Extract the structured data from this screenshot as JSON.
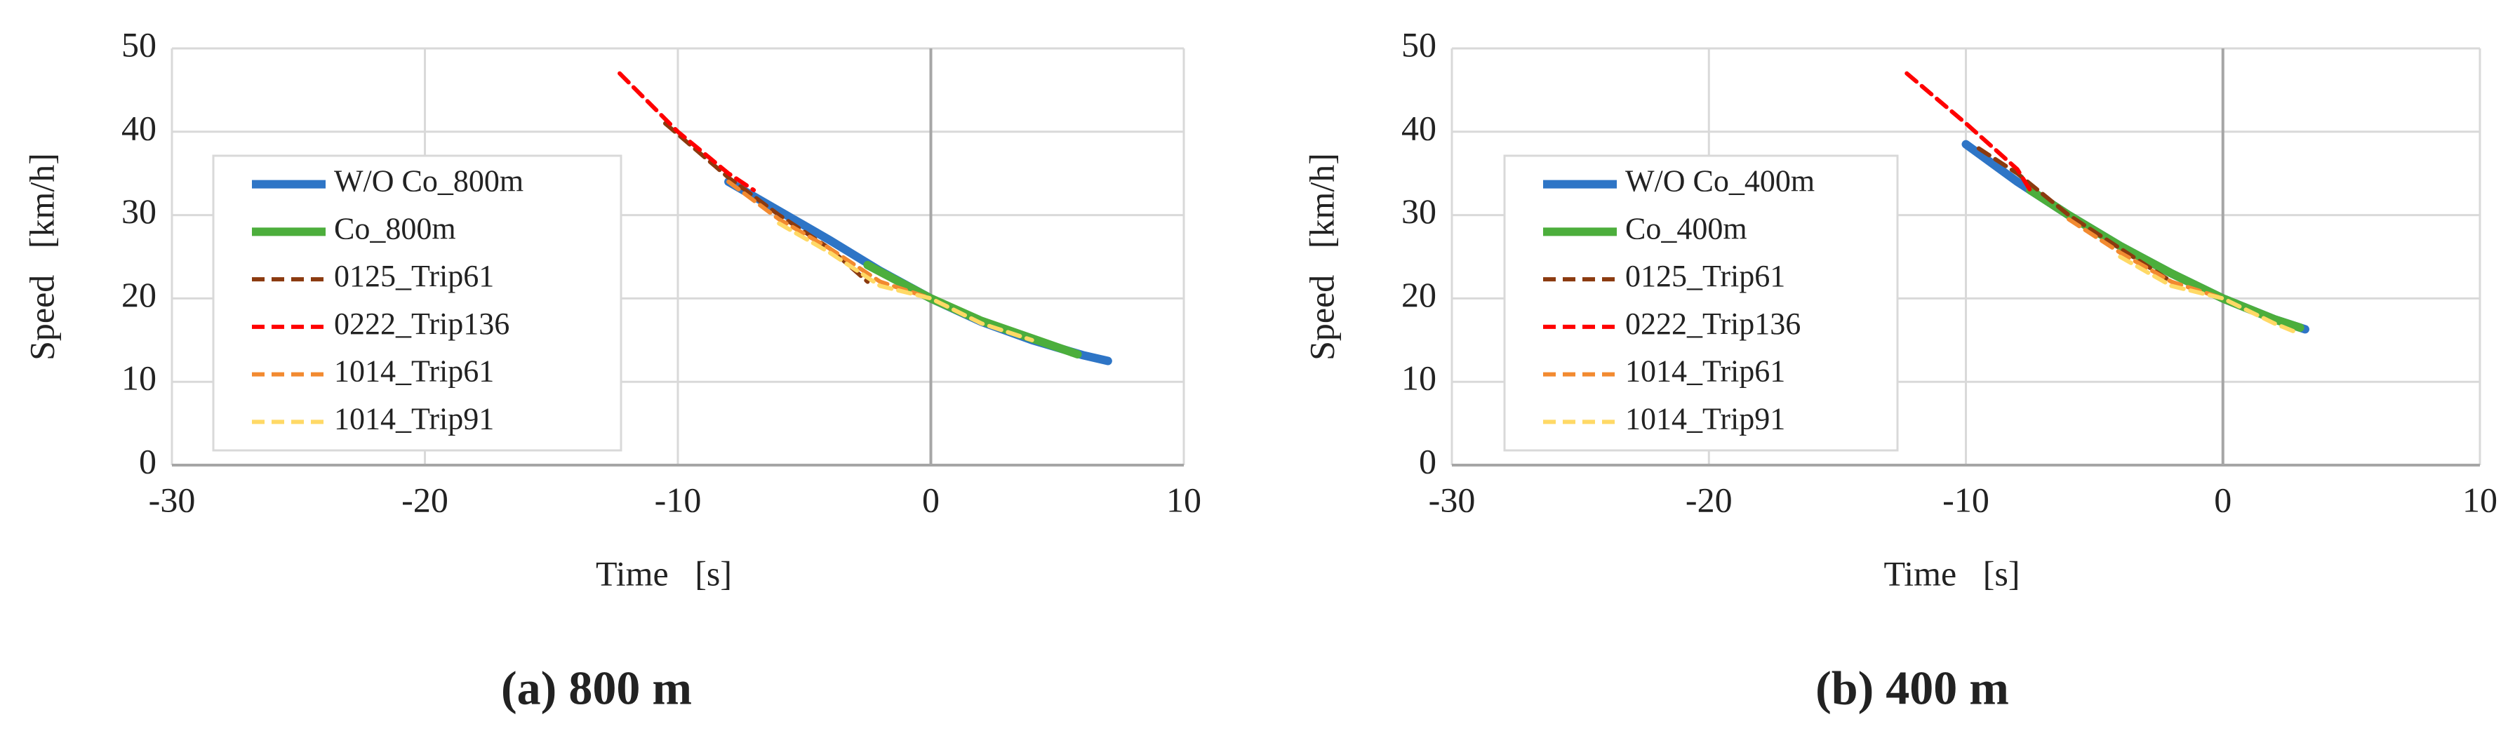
{
  "chart_data": [
    {
      "type": "line",
      "caption": "(a) 800 m",
      "xlabel": "Time   [s]",
      "ylabel": "Speed   [km/h]",
      "xlim": [
        -30,
        10
      ],
      "xticks": [
        -30,
        -20,
        -10,
        0,
        10
      ],
      "ylim": [
        0,
        50
      ],
      "yticks": [
        0,
        10,
        20,
        30,
        40,
        50
      ],
      "grid": true,
      "series": [
        {
          "name": "W/O Co_800m",
          "color": "#2e75c6",
          "style": "solid",
          "x": [
            -8,
            -6,
            -4,
            -2,
            0,
            2,
            4,
            6,
            7
          ],
          "values": [
            34,
            30.5,
            27,
            23.3,
            20,
            17.2,
            15,
            13.2,
            12.5
          ]
        },
        {
          "name": "Co_800m",
          "color": "#4cae3c",
          "style": "solid",
          "x": [
            -2.5,
            0,
            2,
            4,
            5.8
          ],
          "values": [
            24,
            20,
            17.3,
            15.2,
            13.3
          ]
        },
        {
          "name": "0125_Trip61",
          "color": "#8b3a0f",
          "style": "dashed",
          "x": [
            -10.5,
            -8,
            -6,
            -4,
            -2.5
          ],
          "values": [
            41,
            34.5,
            30,
            26,
            22
          ]
        },
        {
          "name": "0222_Trip136",
          "color": "#ff0000",
          "style": "dashed",
          "x": [
            -12.3,
            -10,
            -8,
            -7
          ],
          "values": [
            47,
            40,
            35,
            33
          ]
        },
        {
          "name": "1014_Trip61",
          "color": "#f28a30",
          "style": "dashed",
          "x": [
            -8,
            -6,
            -4,
            -2,
            0
          ],
          "values": [
            34,
            29.5,
            26,
            22,
            20
          ]
        },
        {
          "name": "1014_Trip91",
          "color": "#ffd966",
          "style": "dashed",
          "x": [
            -6,
            -4,
            -2,
            0,
            2,
            4
          ],
          "values": [
            29,
            25.5,
            21.5,
            20,
            17,
            15
          ]
        }
      ]
    },
    {
      "type": "line",
      "caption": "(b) 400 m",
      "xlabel": "Time   [s]",
      "ylabel": "Speed   [km/h]",
      "xlim": [
        -30,
        10
      ],
      "xticks": [
        -30,
        -20,
        -10,
        0,
        10
      ],
      "ylim": [
        0,
        50
      ],
      "yticks": [
        0,
        10,
        20,
        30,
        40,
        50
      ],
      "grid": true,
      "series": [
        {
          "name": "W/O Co_400m",
          "color": "#2e75c6",
          "style": "solid",
          "x": [
            -10,
            -8,
            -6,
            -4,
            -2,
            0,
            2,
            3.2
          ],
          "values": [
            38.5,
            34,
            30,
            26.3,
            23,
            20,
            17.5,
            16.3
          ]
        },
        {
          "name": "Co_400m",
          "color": "#4cae3c",
          "style": "solid",
          "x": [
            -7.5,
            -6,
            -4,
            -2,
            0,
            2,
            3
          ],
          "values": [
            33,
            30,
            26.3,
            23,
            20,
            17.5,
            16.5
          ]
        },
        {
          "name": "0125_Trip61",
          "color": "#8b3a0f",
          "style": "dashed",
          "x": [
            -9.5,
            -8,
            -6,
            -4,
            -2
          ],
          "values": [
            38,
            35,
            30,
            26,
            22
          ]
        },
        {
          "name": "0222_Trip136",
          "color": "#ff0000",
          "style": "dashed",
          "x": [
            -12.3,
            -10,
            -8,
            -7.5
          ],
          "values": [
            47,
            41,
            35.5,
            33
          ]
        },
        {
          "name": "1014_Trip61",
          "color": "#f28a30",
          "style": "dashed",
          "x": [
            -6,
            -4,
            -2,
            0
          ],
          "values": [
            29.5,
            25.5,
            22,
            20
          ]
        },
        {
          "name": "1014_Trip91",
          "color": "#ffd966",
          "style": "dashed",
          "x": [
            -4,
            -2,
            0,
            2,
            2.8
          ],
          "values": [
            25,
            21.5,
            20,
            17,
            16
          ]
        }
      ]
    }
  ]
}
